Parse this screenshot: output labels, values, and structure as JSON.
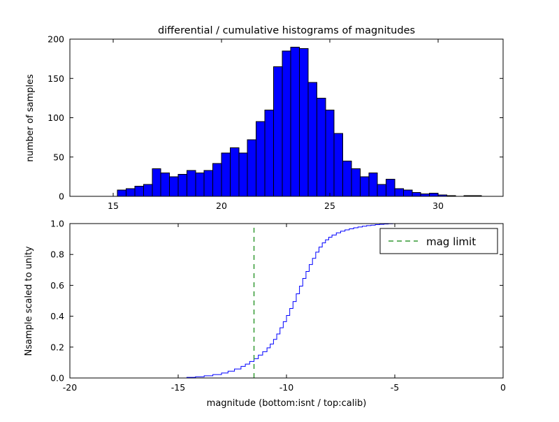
{
  "chart_data": [
    {
      "type": "bar",
      "name": "differential-histogram",
      "title": "differential / cumulative histograms of magnitudes",
      "xlabel": "",
      "ylabel": "number of samples",
      "xlim": [
        13,
        33
      ],
      "ylim": [
        0,
        200
      ],
      "xticks": [
        15,
        20,
        25,
        30
      ],
      "yticks": [
        0,
        50,
        100,
        150,
        200
      ],
      "grid": false,
      "bar_color": "#0000ff",
      "bar_edge_color": "#000000",
      "bin_start": 15.2,
      "bin_width": 0.4,
      "counts": [
        8,
        10,
        13,
        15,
        35,
        30,
        25,
        28,
        33,
        30,
        33,
        42,
        55,
        62,
        55,
        72,
        95,
        110,
        165,
        185,
        190,
        188,
        145,
        125,
        110,
        80,
        45,
        35,
        25,
        30,
        15,
        22,
        10,
        8,
        5,
        3,
        4,
        2,
        1,
        0,
        1,
        1
      ]
    },
    {
      "type": "line",
      "name": "cumulative-histogram",
      "xlabel": "magnitude (bottom:isnt / top:calib)",
      "ylabel": "Nsample scaled to unity",
      "xlim": [
        -20,
        0
      ],
      "ylim": [
        0.0,
        1.0
      ],
      "xticks": [
        -20,
        -15,
        -10,
        -5,
        0
      ],
      "yticks": [
        0.0,
        0.2,
        0.4,
        0.6,
        0.8,
        1.0
      ],
      "grid": false,
      "line_color": "#0000ff",
      "steps": [
        [
          -20,
          0
        ],
        [
          -14.8,
          0
        ],
        [
          -14.6,
          0.004
        ],
        [
          -14.2,
          0.008
        ],
        [
          -13.8,
          0.014
        ],
        [
          -13.4,
          0.022
        ],
        [
          -13.0,
          0.032
        ],
        [
          -12.7,
          0.044
        ],
        [
          -12.4,
          0.058
        ],
        [
          -12.1,
          0.075
        ],
        [
          -11.9,
          0.09
        ],
        [
          -11.7,
          0.107
        ],
        [
          -11.5,
          0.125
        ],
        [
          -11.3,
          0.148
        ],
        [
          -11.1,
          0.17
        ],
        [
          -10.9,
          0.195
        ],
        [
          -10.75,
          0.22
        ],
        [
          -10.6,
          0.25
        ],
        [
          -10.45,
          0.285
        ],
        [
          -10.3,
          0.325
        ],
        [
          -10.15,
          0.365
        ],
        [
          -10.0,
          0.405
        ],
        [
          -9.85,
          0.45
        ],
        [
          -9.7,
          0.495
        ],
        [
          -9.55,
          0.545
        ],
        [
          -9.4,
          0.595
        ],
        [
          -9.25,
          0.645
        ],
        [
          -9.1,
          0.69
        ],
        [
          -8.95,
          0.735
        ],
        [
          -8.8,
          0.775
        ],
        [
          -8.65,
          0.815
        ],
        [
          -8.5,
          0.848
        ],
        [
          -8.35,
          0.875
        ],
        [
          -8.2,
          0.895
        ],
        [
          -8.05,
          0.912
        ],
        [
          -7.9,
          0.926
        ],
        [
          -7.7,
          0.94
        ],
        [
          -7.5,
          0.951
        ],
        [
          -7.3,
          0.959
        ],
        [
          -7.1,
          0.966
        ],
        [
          -6.9,
          0.973
        ],
        [
          -6.7,
          0.978
        ],
        [
          -6.5,
          0.983
        ],
        [
          -6.3,
          0.987
        ],
        [
          -6.1,
          0.99
        ],
        [
          -5.9,
          0.993
        ],
        [
          -5.7,
          0.995
        ],
        [
          -5.5,
          0.997
        ],
        [
          -5.3,
          0.999
        ],
        [
          -5.1,
          1.0
        ],
        [
          0,
          1.0
        ]
      ],
      "mag_limit": {
        "x": -11.5,
        "label": "mag limit",
        "color": "#339933",
        "linestyle": "dashed"
      },
      "legend": {
        "entries": [
          "mag limit"
        ],
        "position": "upper right"
      }
    }
  ]
}
